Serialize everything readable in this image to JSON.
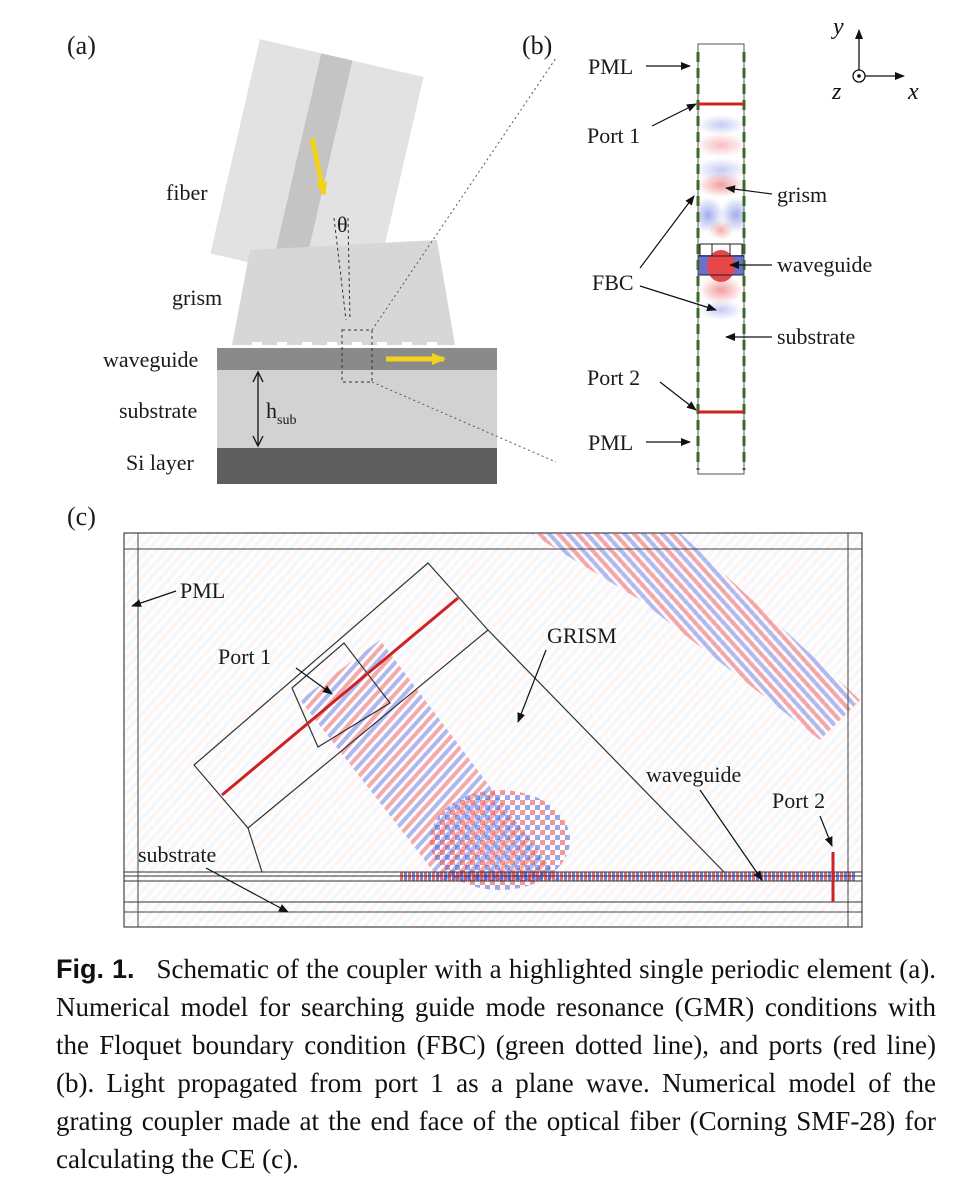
{
  "panel_a": {
    "tag": "(a)",
    "labels": {
      "fiber": "fiber",
      "theta": "θ",
      "grism": "grism",
      "waveguide": "waveguide",
      "substrate": "substrate",
      "h_sub_main": "h",
      "h_sub_sub": "sub",
      "si_layer": "Si layer"
    }
  },
  "panel_b": {
    "tag": "(b)",
    "labels": {
      "pml_top": "PML",
      "port1": "Port 1",
      "grism": "grism",
      "waveguide": "waveguide",
      "fbc": "FBC",
      "substrate": "substrate",
      "port2": "Port 2",
      "pml_bottom": "PML"
    },
    "axes": {
      "y": "y",
      "z": "z",
      "x": "x"
    }
  },
  "panel_c": {
    "tag": "(c)",
    "labels": {
      "pml": "PML",
      "port1": "Port 1",
      "grism": "GRISM",
      "waveguide": "waveguide",
      "port2": "Port 2",
      "substrate": "substrate"
    }
  },
  "colors": {
    "port": "#cc2222",
    "fbc": "#3a6b2a",
    "beam_arrow": "#f2d21a",
    "field_red": "#e8474a",
    "field_blue": "#3a4fd6"
  },
  "caption": {
    "label": "Fig. 1.",
    "text": "Schematic of the coupler with a highlighted single periodic element (a). Numerical model for searching guide mode resonance (GMR) conditions with the Floquet boundary condition (FBC) (green dotted line), and ports (red line) (b). Light propagated from port 1 as a plane wave. Numerical model of the grating coupler made at the end face of the optical fiber (Corning SMF-28) for calculating the CE (c)."
  }
}
